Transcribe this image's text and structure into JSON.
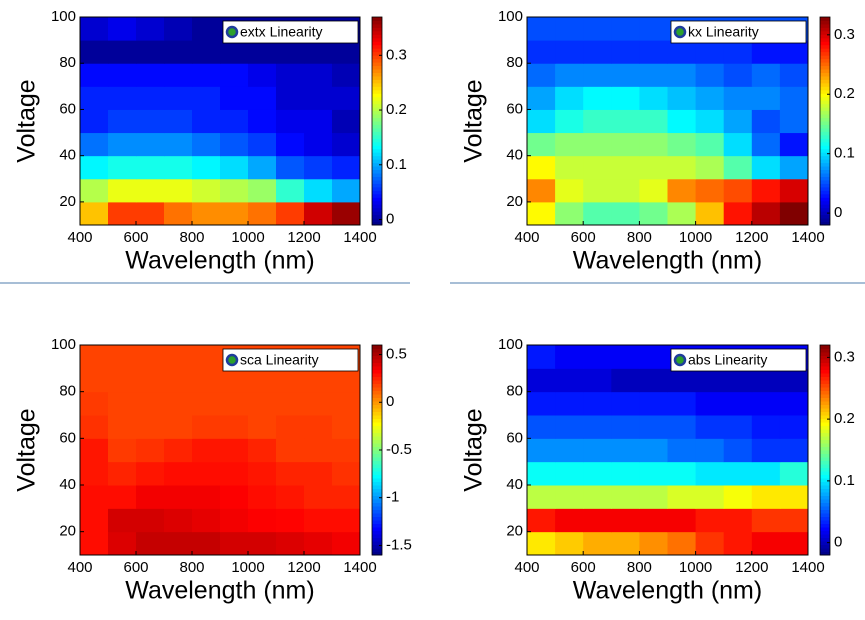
{
  "chart_data": [
    {
      "type": "heatmap",
      "xlabel": "Wavelength (nm)",
      "ylabel": "Voltage",
      "legend": "extx Linearity",
      "x": [
        450,
        550,
        650,
        750,
        850,
        950,
        1050,
        1150,
        1250,
        1350
      ],
      "y": [
        15,
        25,
        35,
        45,
        55,
        65,
        75,
        85,
        95
      ],
      "z": [
        [
          0.25,
          0.3,
          0.3,
          0.28,
          0.27,
          0.27,
          0.28,
          0.3,
          0.34,
          0.36
        ],
        [
          0.2,
          0.22,
          0.22,
          0.22,
          0.21,
          0.2,
          0.19,
          0.15,
          0.12,
          0.1
        ],
        [
          0.13,
          0.14,
          0.14,
          0.14,
          0.13,
          0.12,
          0.1,
          0.07,
          0.06,
          0.05
        ],
        [
          0.08,
          0.09,
          0.09,
          0.09,
          0.08,
          0.07,
          0.06,
          0.04,
          0.03,
          0.02
        ],
        [
          0.05,
          0.06,
          0.06,
          0.06,
          0.05,
          0.05,
          0.04,
          0.03,
          0.03,
          0.01
        ],
        [
          0.05,
          0.05,
          0.05,
          0.05,
          0.05,
          0.04,
          0.04,
          0.02,
          0.02,
          0.02
        ],
        [
          0.04,
          0.04,
          0.04,
          0.04,
          0.04,
          0.04,
          0.03,
          0.02,
          0.02,
          0.01
        ],
        [
          0,
          0,
          0,
          0,
          0,
          0,
          0,
          0,
          0,
          0
        ],
        [
          0.02,
          0.03,
          0.02,
          0.01,
          0,
          0,
          0,
          0,
          0,
          0
        ]
      ],
      "xlim": [
        400,
        1400
      ],
      "ylim": [
        10,
        100
      ],
      "xticks": [
        400,
        600,
        800,
        1000,
        1200,
        1400
      ],
      "yticks": [
        20,
        40,
        60,
        80,
        100
      ],
      "clim": [
        -0.01,
        0.37
      ],
      "cticks": [
        0,
        0.1,
        0.2,
        0.3
      ],
      "colormap": "jet"
    },
    {
      "type": "heatmap",
      "xlabel": "Wavelength (nm)",
      "ylabel": "Voltage",
      "legend": "kx Linearity",
      "x": [
        450,
        550,
        650,
        750,
        850,
        950,
        1050,
        1150,
        1250,
        1350
      ],
      "y": [
        15,
        25,
        35,
        45,
        55,
        65,
        75,
        85,
        95
      ],
      "z": [
        [
          0.2,
          0.16,
          0.14,
          0.14,
          0.15,
          0.17,
          0.22,
          0.28,
          0.31,
          0.33
        ],
        [
          0.24,
          0.19,
          0.18,
          0.18,
          0.19,
          0.24,
          0.25,
          0.26,
          0.28,
          0.3
        ],
        [
          0.2,
          0.18,
          0.18,
          0.18,
          0.18,
          0.18,
          0.17,
          0.14,
          0.1,
          0.08
        ],
        [
          0.15,
          0.16,
          0.16,
          0.16,
          0.16,
          0.15,
          0.14,
          0.1,
          0.06,
          0.03
        ],
        [
          0.1,
          0.12,
          0.13,
          0.13,
          0.13,
          0.11,
          0.1,
          0.08,
          0.05,
          0.06
        ],
        [
          0.08,
          0.1,
          0.11,
          0.11,
          0.1,
          0.09,
          0.08,
          0.07,
          0.07,
          0.06
        ],
        [
          0.06,
          0.07,
          0.07,
          0.07,
          0.07,
          0.07,
          0.06,
          0.05,
          0.06,
          0.05
        ],
        [
          0.04,
          0.04,
          0.04,
          0.04,
          0.04,
          0.04,
          0.04,
          0.04,
          0.03,
          0.03
        ],
        [
          0.05,
          0.05,
          0.05,
          0.05,
          0.05,
          0.05,
          0.05,
          0.05,
          0.05,
          0.05
        ]
      ],
      "xlim": [
        400,
        1400
      ],
      "ylim": [
        10,
        100
      ],
      "xticks": [
        400,
        600,
        800,
        1000,
        1200,
        1400
      ],
      "yticks": [
        20,
        40,
        60,
        80,
        100
      ],
      "clim": [
        -0.02,
        0.33
      ],
      "cticks": [
        0,
        0.1,
        0.2,
        0.3
      ],
      "colormap": "jet"
    },
    {
      "type": "heatmap",
      "xlabel": "Wavelength (nm)",
      "ylabel": "Voltage",
      "legend": "sca Linearity",
      "x": [
        450,
        550,
        650,
        750,
        850,
        950,
        1050,
        1150,
        1250,
        1350
      ],
      "y": [
        15,
        25,
        35,
        45,
        55,
        65,
        75,
        85,
        95
      ],
      "z": [
        [
          0.3,
          0.4,
          0.45,
          0.45,
          0.45,
          0.42,
          0.42,
          0.4,
          0.38,
          0.35
        ],
        [
          0.3,
          0.42,
          0.42,
          0.4,
          0.38,
          0.35,
          0.33,
          0.32,
          0.3,
          0.3
        ],
        [
          0.3,
          0.3,
          0.35,
          0.35,
          0.35,
          0.33,
          0.3,
          0.28,
          0.25,
          0.25
        ],
        [
          0.28,
          0.25,
          0.28,
          0.3,
          0.3,
          0.3,
          0.28,
          0.25,
          0.25,
          0.22
        ],
        [
          0.28,
          0.2,
          0.22,
          0.25,
          0.28,
          0.28,
          0.25,
          0.2,
          0.2,
          0.2
        ],
        [
          0.22,
          0.18,
          0.18,
          0.18,
          0.2,
          0.2,
          0.18,
          0.2,
          0.2,
          0.18
        ],
        [
          0.2,
          0.18,
          0.18,
          0.18,
          0.18,
          0.18,
          0.18,
          0.18,
          0.18,
          0.18
        ],
        [
          0.18,
          0.18,
          0.18,
          0.18,
          0.18,
          0.18,
          0.18,
          0.18,
          0.18,
          0.18
        ],
        [
          0.18,
          0.18,
          0.18,
          0.18,
          0.18,
          0.18,
          0.18,
          0.18,
          0.18,
          0.18
        ]
      ],
      "xlim": [
        400,
        1400
      ],
      "ylim": [
        10,
        100
      ],
      "xticks": [
        400,
        600,
        800,
        1000,
        1200,
        1400
      ],
      "yticks": [
        20,
        40,
        60,
        80,
        100
      ],
      "clim": [
        -1.6,
        0.6
      ],
      "cticks": [
        0.5,
        0,
        -0.5,
        -1,
        -1.5
      ],
      "colormap": "jet"
    },
    {
      "type": "heatmap",
      "xlabel": "Wavelength (nm)",
      "ylabel": "Voltage",
      "legend": "abs Linearity",
      "x": [
        450,
        550,
        650,
        750,
        850,
        950,
        1050,
        1150,
        1250,
        1350
      ],
      "y": [
        15,
        25,
        35,
        45,
        55,
        65,
        75,
        85,
        95
      ],
      "z": [
        [
          0.2,
          0.21,
          0.22,
          0.22,
          0.23,
          0.24,
          0.26,
          0.27,
          0.28,
          0.28
        ],
        [
          0.27,
          0.28,
          0.28,
          0.28,
          0.28,
          0.28,
          0.27,
          0.27,
          0.26,
          0.26
        ],
        [
          0.17,
          0.17,
          0.17,
          0.17,
          0.17,
          0.18,
          0.18,
          0.19,
          0.2,
          0.2
        ],
        [
          0.11,
          0.11,
          0.11,
          0.11,
          0.11,
          0.11,
          0.1,
          0.1,
          0.1,
          0.12
        ],
        [
          0.07,
          0.07,
          0.07,
          0.07,
          0.07,
          0.06,
          0.06,
          0.05,
          0.04,
          0.04
        ],
        [
          0.05,
          0.05,
          0.05,
          0.05,
          0.05,
          0.05,
          0.04,
          0.04,
          0.03,
          0.03
        ],
        [
          0.03,
          0.03,
          0.03,
          0.03,
          0.03,
          0.03,
          0.02,
          0.02,
          0.02,
          0.02
        ],
        [
          0.01,
          0.01,
          0.01,
          0,
          0,
          0,
          0,
          0,
          0,
          0
        ],
        [
          0.03,
          0.02,
          0.02,
          0.02,
          0.02,
          0.02,
          0.02,
          0.02,
          0.02,
          0.02
        ]
      ],
      "xlim": [
        400,
        1400
      ],
      "ylim": [
        10,
        100
      ],
      "xticks": [
        400,
        600,
        800,
        1000,
        1200,
        1400
      ],
      "yticks": [
        20,
        40,
        60,
        80,
        100
      ],
      "clim": [
        -0.02,
        0.32
      ],
      "cticks": [
        0,
        0.1,
        0.2,
        0.3
      ],
      "colormap": "jet"
    }
  ]
}
